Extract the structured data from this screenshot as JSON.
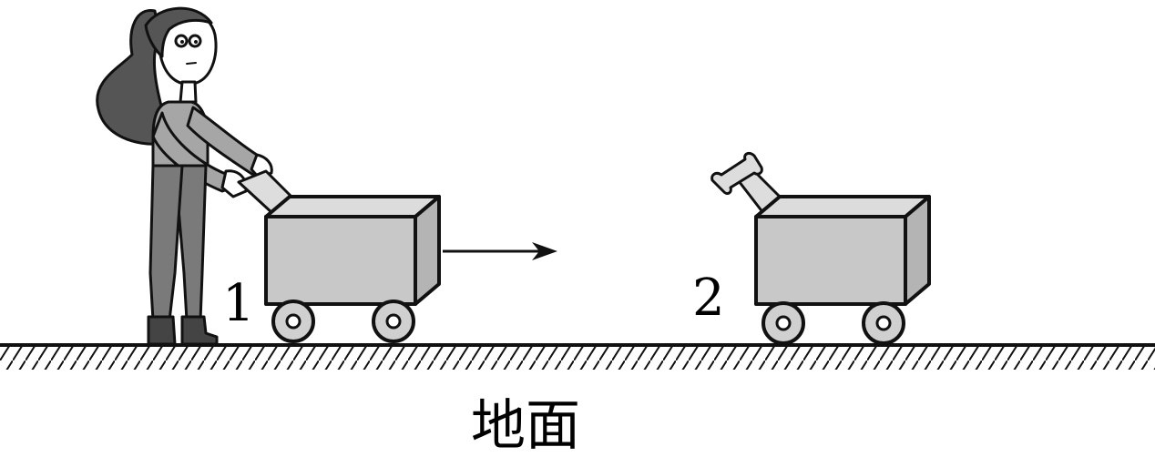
{
  "labels": {
    "cart1": "1",
    "cart2": "2",
    "ground": "地面"
  },
  "colors": {
    "outline": "#111111",
    "cart_front": "#c8c8c8",
    "cart_top": "#dcdcdc",
    "cart_side": "#b4b4b4",
    "hair": "#555555",
    "sweater": "#a6a6a6",
    "pants": "#7a7a7a",
    "skin": "#ffffff",
    "boots": "#444444"
  }
}
